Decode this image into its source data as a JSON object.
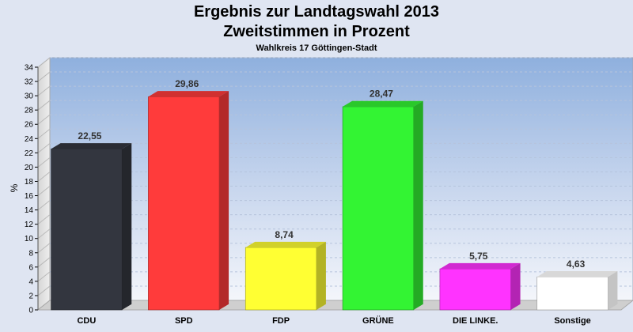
{
  "header": {
    "title": "Ergebnis zur Landtagswahl 2013",
    "subtitle": "Zweitstimmen in Prozent",
    "subsubtitle": "Wahlkreis 17 Göttingen-Stadt"
  },
  "chart_data": {
    "type": "bar",
    "title": "Ergebnis zur Landtagswahl 2013",
    "subtitle": "Zweitstimmen in Prozent",
    "xlabel": "",
    "ylabel": "%",
    "ylim": [
      0,
      34
    ],
    "yticks": [
      0,
      2,
      4,
      6,
      8,
      10,
      12,
      14,
      16,
      18,
      20,
      22,
      24,
      26,
      28,
      30,
      32,
      34
    ],
    "categories": [
      "CDU",
      "SPD",
      "FDP",
      "GRÜNE",
      "DIE LINKE.",
      "Sonstige"
    ],
    "values": [
      22.55,
      29.86,
      8.74,
      28.47,
      5.75,
      4.63
    ],
    "value_labels": [
      "22,55",
      "29,86",
      "8,74",
      "28,47",
      "5,75",
      "4,63"
    ],
    "colors": [
      "#33363f",
      "#ff3b3b",
      "#ffff33",
      "#33f433",
      "#ff33ff",
      "#ffffff"
    ],
    "grid": true,
    "legend": "none"
  }
}
